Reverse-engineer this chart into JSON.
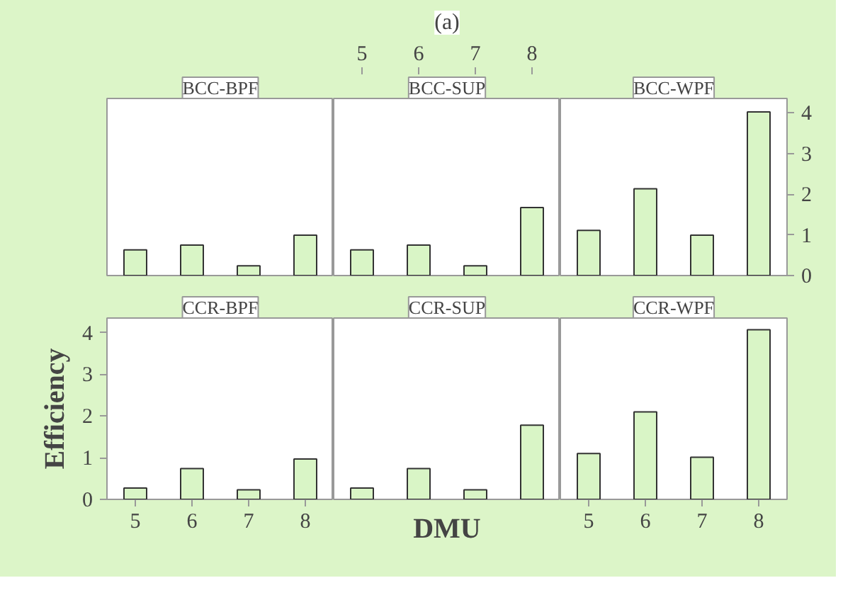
{
  "chart_data": [
    {
      "type": "bar",
      "title": "BCC-BPF",
      "categories": [
        "5",
        "6",
        "7",
        "8"
      ],
      "values": [
        0.63,
        0.75,
        0.24,
        0.99
      ],
      "color": "#d9f5c6",
      "ylim": [
        0,
        4.35
      ],
      "tick_labels": false
    },
    {
      "type": "bar",
      "title": "BCC-SUP",
      "annotations": [
        "(a)"
      ],
      "categories": [
        "5",
        "6",
        "7",
        "8"
      ],
      "values": [
        0.63,
        0.75,
        0.24,
        1.67
      ],
      "color": "#d9f5c6",
      "ylim": [
        0,
        4.35
      ],
      "tick_labels": "x"
    },
    {
      "type": "bar",
      "title": "BCC-WPF",
      "categories": [
        "5",
        "6",
        "7",
        "8"
      ],
      "values": [
        1.11,
        2.13,
        0.99,
        4.02
      ],
      "color": "#d9f5c6",
      "ylim": [
        0,
        4.35
      ],
      "yticks": [
        0,
        1,
        2,
        3,
        4
      ],
      "tick_labels": "y"
    },
    {
      "type": "bar",
      "title": "CCR-BPF",
      "ylabel": "Efficiency",
      "categories": [
        "5",
        "6",
        "7",
        "8"
      ],
      "values": [
        0.27,
        0.74,
        0.23,
        0.97
      ],
      "color": "#d9f5c6",
      "ylim": [
        0,
        4.35
      ],
      "yticks": [
        0,
        1,
        2,
        3,
        4
      ]
    },
    {
      "type": "bar",
      "title": "CCR-SUP",
      "xlabel": "DMU",
      "categories": [
        "5",
        "6",
        "7",
        "8"
      ],
      "values": [
        0.27,
        0.74,
        0.23,
        1.78
      ],
      "color": "#d9f5c6",
      "ylim": [
        0,
        4.35
      ],
      "tick_labels": false
    },
    {
      "type": "bar",
      "title": "CCR-WPF",
      "categories": [
        "5",
        "6",
        "7",
        "8"
      ],
      "values": [
        1.1,
        2.1,
        1.01,
        4.07
      ],
      "color": "#d9f5c6",
      "ylim": [
        0,
        4.35
      ],
      "tick_labels": "x"
    }
  ]
}
